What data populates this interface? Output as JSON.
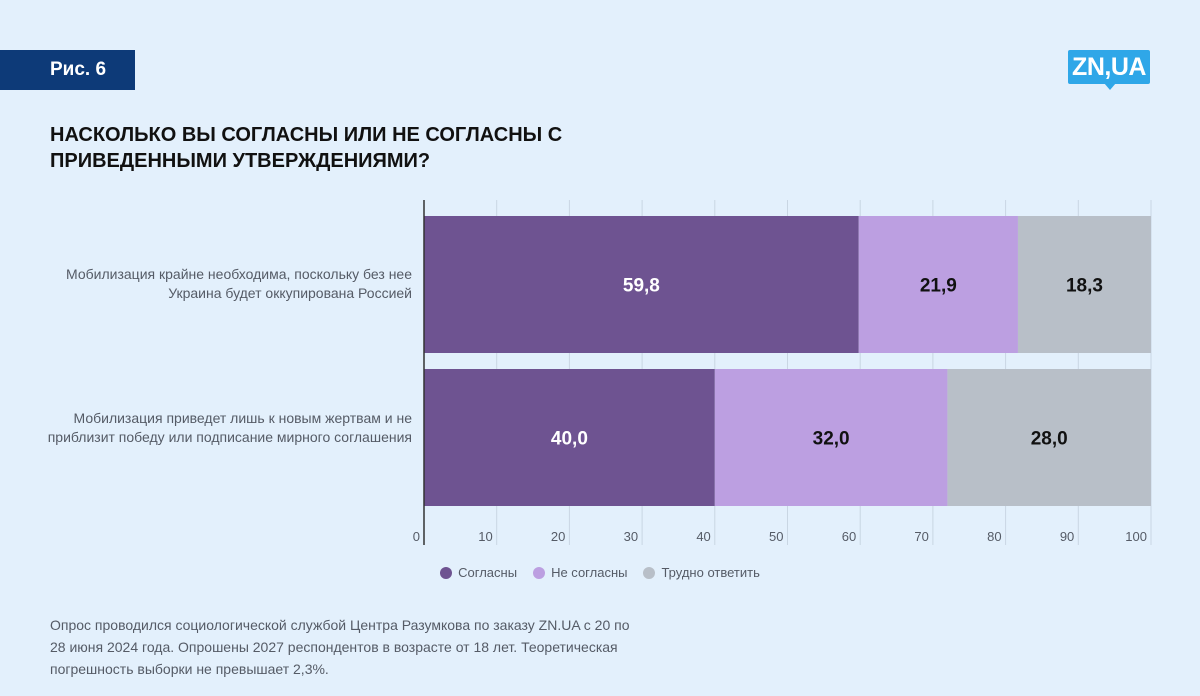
{
  "figure_tag": "Рис. 6",
  "logo": "ZN,UA",
  "colors": {
    "background": "#e3f0fc",
    "tag_bg": "#0d3a78",
    "logo_bg": "#2fa7e8",
    "agree": "#6e5391",
    "disagree": "#bc9fe1",
    "hard": "#b8bfc8"
  },
  "chart_data": {
    "type": "bar",
    "orientation": "horizontal",
    "stacked": true,
    "title": "НАСКОЛЬКО ВЫ СОГЛАСНЫ ИЛИ НЕ СОГЛАСНЫ С ПРИВЕДЕННЫМИ УТВЕРЖДЕНИЯМИ?",
    "categories": [
      "Мобилизация крайне необходима, поскольку без нее Украина будет оккупирована Россией",
      "Мобилизация приведет лишь к новым жертвам и не приблизит победу или подписание мирного соглашения"
    ],
    "series": [
      {
        "name": "Согласны",
        "values": [
          59.8,
          40.0
        ],
        "labels": [
          "59,8",
          "40,0"
        ],
        "color": "#6e5391"
      },
      {
        "name": "Не согласны",
        "values": [
          21.9,
          32.0
        ],
        "labels": [
          "21,9",
          "32,0"
        ],
        "color": "#bc9fe1"
      },
      {
        "name": "Трудно ответить",
        "values": [
          18.3,
          28.0
        ],
        "labels": [
          "18,3",
          "28,0"
        ],
        "color": "#b8bfc8"
      }
    ],
    "xlim": [
      0,
      100
    ],
    "xticks": [
      "0",
      "10",
      "20",
      "30",
      "40",
      "50",
      "60",
      "70",
      "80",
      "90",
      "100"
    ],
    "grid": true,
    "legend_position": "bottom"
  },
  "note": "Опрос проводился социологической службой Центра Разумкова по заказу ZN.UA с 20 по 28 июня 2024 года. Опрошены 2027 респондентов в возрасте от 18 лет. Теоретическая погрешность выборки не превышает 2,3%."
}
